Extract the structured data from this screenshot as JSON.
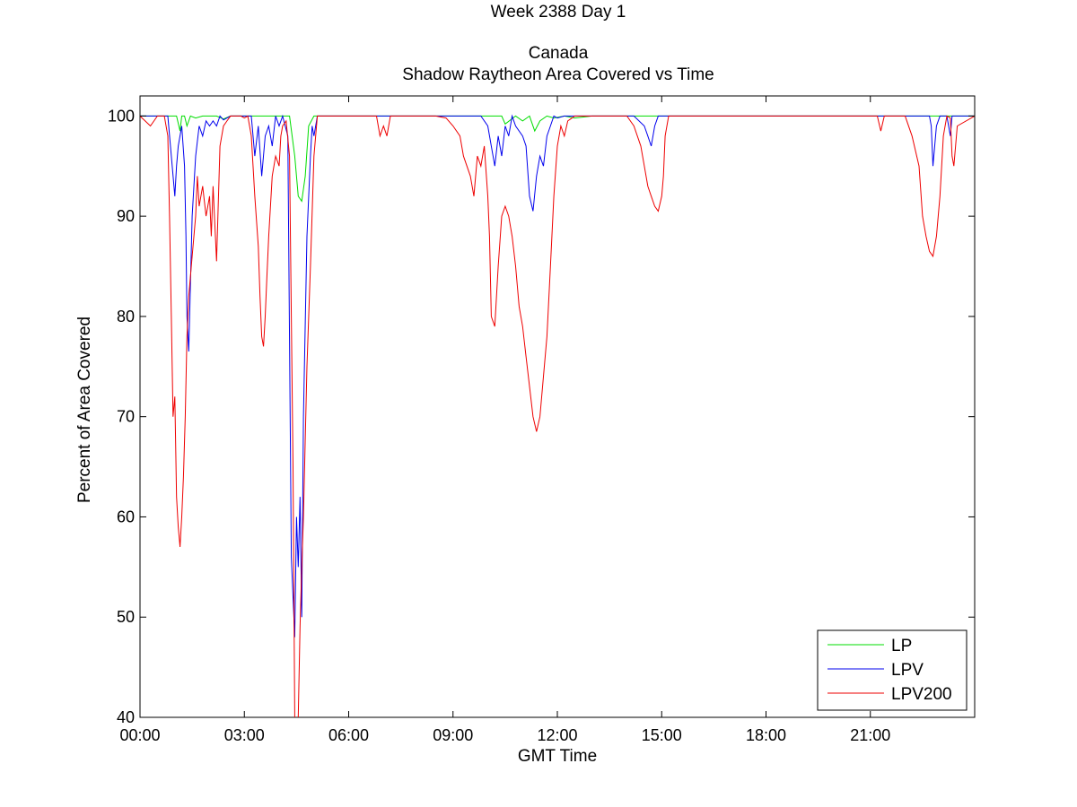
{
  "titles": {
    "line1": "Week 2388 Day 1",
    "line2": "Canada",
    "line3": "Shadow Raytheon Area Covered vs Time"
  },
  "chart_data": {
    "type": "line",
    "title": "Week 2388 Day 1 Canada Shadow Raytheon Area Covered vs Time",
    "xlabel": "GMT Time",
    "ylabel": "Percent of Area Covered",
    "xlim": [
      0,
      24
    ],
    "ylim": [
      40,
      102
    ],
    "xticks": [
      0,
      3,
      6,
      9,
      12,
      15,
      18,
      21
    ],
    "xtick_labels": [
      "00:00",
      "03:00",
      "06:00",
      "09:00",
      "12:00",
      "15:00",
      "18:00",
      "21:00"
    ],
    "yticks": [
      40,
      50,
      60,
      70,
      80,
      90,
      100
    ],
    "ytick_labels": [
      "40",
      "50",
      "60",
      "70",
      "80",
      "90",
      "100"
    ],
    "grid": false,
    "legend": "bottom-right",
    "series": [
      {
        "name": "LP",
        "color": "#00dd00",
        "x": [
          0,
          1.05,
          1.15,
          1.2,
          1.28,
          1.35,
          1.45,
          1.6,
          1.8,
          2.2,
          2.4,
          2.6,
          2.8,
          3.4,
          4.3,
          4.45,
          4.55,
          4.65,
          4.75,
          4.85,
          5.0,
          5.1,
          9.8,
          10.4,
          10.5,
          10.8,
          11.0,
          11.2,
          11.35,
          11.5,
          11.7,
          11.9,
          12.2,
          12.5,
          13.0,
          14.3,
          14.8,
          15.0,
          24
        ],
        "y": [
          100,
          100,
          98.5,
          100,
          100,
          99,
          100,
          99.8,
          100,
          100,
          99.7,
          100,
          100,
          100,
          100,
          96,
          92,
          91.5,
          94,
          99,
          100,
          100,
          100,
          100,
          99.2,
          100,
          99.5,
          100,
          98.5,
          99.5,
          100,
          99.8,
          100,
          99.8,
          100,
          100,
          100,
          100,
          100
        ]
      },
      {
        "name": "LPV",
        "color": "#0000ee",
        "x": [
          0,
          0.8,
          0.9,
          1.0,
          1.05,
          1.1,
          1.2,
          1.28,
          1.32,
          1.35,
          1.4,
          1.5,
          1.6,
          1.7,
          1.8,
          1.9,
          2.0,
          2.1,
          2.2,
          2.3,
          2.4,
          2.6,
          3.2,
          3.3,
          3.4,
          3.5,
          3.6,
          3.7,
          3.8,
          3.9,
          4.0,
          4.1,
          4.25,
          4.35,
          4.45,
          4.5,
          4.55,
          4.6,
          4.65,
          4.7,
          4.8,
          4.9,
          4.95,
          5.0,
          5.1,
          5.2,
          9.8,
          10.0,
          10.1,
          10.2,
          10.3,
          10.4,
          10.5,
          10.6,
          10.7,
          10.8,
          11.0,
          11.1,
          11.2,
          11.3,
          11.4,
          11.5,
          11.6,
          11.7,
          11.8,
          11.9,
          12.0,
          12.2,
          12.5,
          12.8,
          14.2,
          14.5,
          14.6,
          14.7,
          14.8,
          14.9,
          15.1,
          22.5,
          22.7,
          22.75,
          22.8,
          22.9,
          23.0,
          23.2,
          23.3,
          23.35,
          23.45,
          24
        ],
        "y": [
          100,
          100,
          96,
          92,
          95,
          97,
          99,
          95,
          88,
          80,
          76.5,
          90,
          96,
          99,
          98,
          99.5,
          99,
          99.5,
          99,
          100,
          99.6,
          100,
          100,
          96,
          99,
          94,
          98,
          99,
          97,
          100,
          99,
          100,
          98,
          56,
          48,
          60,
          55,
          62,
          50,
          70,
          88,
          96,
          99,
          98,
          100,
          100,
          100,
          99,
          97,
          95,
          98,
          96,
          99,
          98,
          100,
          99,
          98,
          97,
          92,
          90.5,
          94,
          96,
          95,
          98,
          99,
          100,
          99.8,
          100,
          100,
          100,
          100,
          99,
          98,
          97,
          99,
          100,
          100,
          100,
          100,
          99,
          95,
          99,
          100,
          100,
          98,
          100,
          100,
          100
        ]
      },
      {
        "name": "LPV200",
        "color": "#ee0000",
        "x": [
          0,
          0.3,
          0.5,
          0.7,
          0.8,
          0.85,
          0.9,
          0.95,
          1.0,
          1.05,
          1.1,
          1.15,
          1.2,
          1.25,
          1.3,
          1.35,
          1.4,
          1.5,
          1.6,
          1.65,
          1.7,
          1.8,
          1.9,
          2.0,
          2.05,
          2.1,
          2.2,
          2.3,
          2.4,
          2.5,
          2.6,
          2.7,
          2.8,
          2.9,
          3.0,
          3.1,
          3.2,
          3.3,
          3.4,
          3.45,
          3.5,
          3.55,
          3.6,
          3.65,
          3.7,
          3.8,
          3.9,
          4.0,
          4.05,
          4.1,
          4.2,
          4.3,
          4.35,
          4.4,
          4.45,
          4.5,
          4.55,
          4.6,
          4.65,
          4.7,
          4.8,
          4.9,
          5.0,
          5.1,
          5.2,
          6.8,
          6.9,
          7.0,
          7.1,
          7.2,
          8.5,
          8.8,
          9.0,
          9.2,
          9.3,
          9.5,
          9.6,
          9.7,
          9.8,
          9.9,
          10.0,
          10.05,
          10.1,
          10.2,
          10.3,
          10.4,
          10.5,
          10.6,
          10.7,
          10.8,
          10.9,
          11.0,
          11.1,
          11.2,
          11.3,
          11.4,
          11.5,
          11.6,
          11.7,
          11.8,
          11.9,
          12.0,
          12.1,
          12.2,
          12.3,
          12.5,
          13.0,
          14.0,
          14.2,
          14.4,
          14.5,
          14.6,
          14.7,
          14.8,
          14.9,
          15.0,
          15.05,
          15.1,
          15.2,
          21.2,
          21.3,
          21.4,
          22.0,
          22.2,
          22.4,
          22.5,
          22.6,
          22.7,
          22.8,
          22.9,
          23.0,
          23.1,
          23.2,
          23.3,
          23.35,
          23.4,
          23.5,
          24
        ],
        "y": [
          100,
          99,
          100,
          100,
          98,
          90,
          80,
          70,
          72,
          62,
          59,
          57,
          60,
          64,
          70,
          78,
          82,
          86,
          90,
          94,
          91,
          93,
          90,
          92,
          88,
          93,
          85.5,
          97,
          99,
          99.5,
          100,
          100,
          100,
          100,
          99.8,
          100,
          98,
          92,
          87,
          82,
          78,
          77,
          80,
          84,
          88,
          94,
          96,
          95,
          98,
          99,
          99.5,
          96,
          80,
          65,
          40,
          38,
          40,
          49,
          55,
          60,
          75,
          85,
          96,
          100,
          100,
          100,
          98,
          99,
          98,
          100,
          100,
          99.8,
          99,
          98,
          96,
          94,
          92,
          96,
          95,
          97,
          92,
          88,
          80,
          79,
          85,
          90,
          91,
          90,
          88,
          85,
          81,
          79,
          76,
          73,
          70,
          68.5,
          70,
          74,
          78,
          85,
          92,
          97,
          99,
          98,
          99.5,
          100,
          100,
          100,
          99,
          97,
          95,
          93,
          92,
          91,
          90.5,
          92,
          94,
          98,
          100,
          100,
          98.5,
          100,
          100,
          98,
          95,
          90,
          88,
          86.5,
          86,
          88,
          92,
          98,
          100,
          99.8,
          96,
          95,
          99,
          100
        ]
      }
    ]
  }
}
